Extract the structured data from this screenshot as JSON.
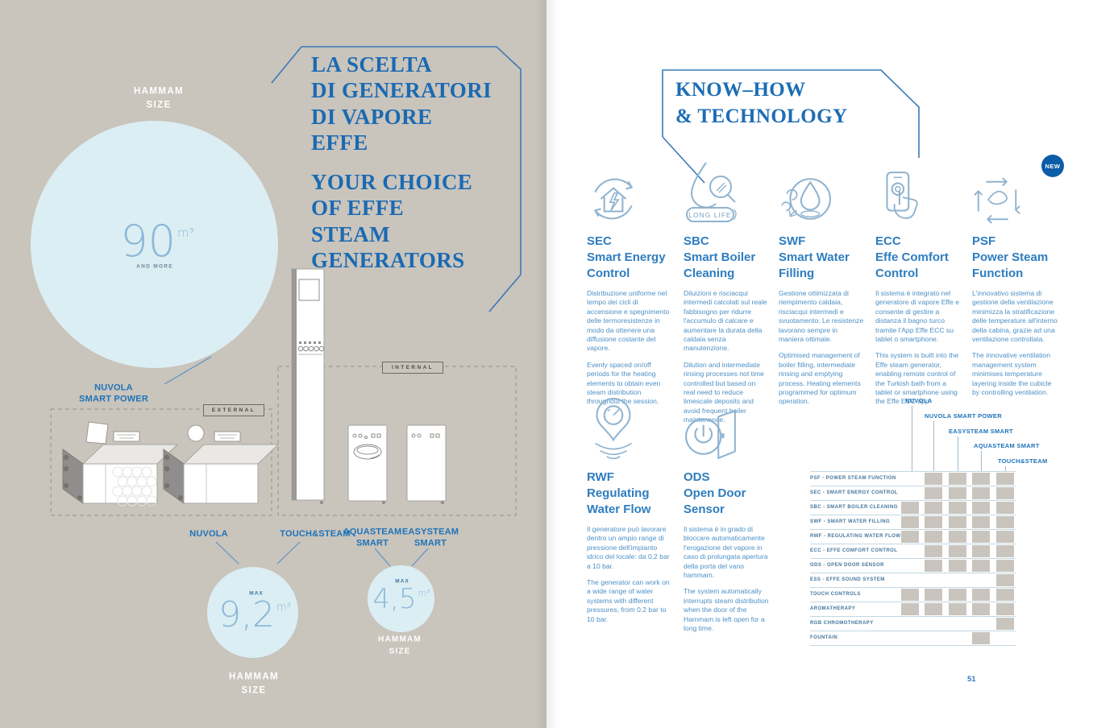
{
  "left_page": {
    "hammam_size_top": "HAMMAM\nSIZE",
    "title_it": "LA SCELTA\nDI GENERATORI\nDI VAPORE\nEFFE",
    "title_en": "YOUR CHOICE\nOF EFFE\nSTEAM\nGENERATORS",
    "big_circle": {
      "value": "90",
      "unit": "m³",
      "note": "AND MORE"
    },
    "labels": {
      "nuvola_smart_power": "NUVOLA\nSMART POWER",
      "external": "EXTERNAL",
      "internal": "INTERNAL",
      "nuvola": "NUVOLA",
      "touch_steam": "TOUCH&STEAM",
      "aquasteam": "AQUASTEAM\nSMART",
      "easysteam": "EASYSTEAM\nSMART"
    },
    "mid_circle": {
      "max": "MAX",
      "value": "9,2",
      "unit": "m³",
      "caption": "HAMMAM\nSIZE"
    },
    "small_circle": {
      "max": "MAX",
      "value": "4,5",
      "unit": "m³",
      "caption": "HAMMAM\nSIZE"
    }
  },
  "right_page": {
    "title": "KNOW–HOW\n& TECHNOLOGY",
    "long_life_label": "LONG LIFE",
    "new_badge": "NEW",
    "features": [
      {
        "code": "SEC",
        "name": "Smart Energy Control",
        "icon": "house-energy-icon",
        "it": "Distribuzione uniforme nel tempo dei cicli di accensione e spegnimento delle termoresistenze in modo da ottenere una diffusione costante del vapore.",
        "en": "Evenly spaced on/off periods for the heating elements to obtain even steam distribution throughout the session."
      },
      {
        "code": "SBC",
        "name": "Smart Boiler Cleaning",
        "icon": "droplet-magnifier-icon",
        "it": "Diluizioni e risciacqui intermedi calcolati sul reale fabbisogno per ridurre l'accumulo di calcare e aumentare la durata della caldaia senza manutenzione.",
        "en": "Dilution and intermediate rinsing processes not time controlled but based on real need to reduce limescale deposits and avoid frequent boiler maintenance."
      },
      {
        "code": "SWF",
        "name": "Smart Water Filling",
        "icon": "water-swirl-icon",
        "it": "Gestione ottimizzata di riempimento caldaia, risciacqui intermedi e svuotamento. Le resistenze lavorano sempre in maniera ottimale.",
        "en": "Optimised management of boiler filling, intermediate rinsing and emptying process. Heating elements programmed for optimum operation."
      },
      {
        "code": "ECC",
        "name": "Effe Comfort Control",
        "icon": "smartphone-touch-icon",
        "it": "Il sistema è integrato nel generatore di vapore Effe e consente di gestire a distanza il bagno turco tramite l'App Effe ECC su tablet o smartphone.",
        "en": "This system is built into the Effe steam generator, enabling remote control of the Turkish bath from a tablet or smartphone using the Effe ECC app."
      },
      {
        "code": "PSF",
        "name": "Power Steam Function",
        "icon": "ventilation-cycle-icon",
        "badge": "NEW",
        "it": "L'innovativo sistema di gestione della ventilazione minimizza la stratificazione delle temperature all'interno della cabina, grazie ad una ventilazione controllata.",
        "en": "The innovative ventilation management system minimises temperature layering inside the cubicle by controlling ventilation."
      },
      {
        "code": "RWF",
        "name": "Regulating Water Flow",
        "icon": "pressure-gauge-pin-icon",
        "it": "Il generatore può lavorare dentro un ampio range di pressione dell'impianto idrico del locale: da 0,2 bar a 10 bar.",
        "en": "The generator can work on a wide range of water systems with different pressures, from 0.2 bar to 10 bar."
      },
      {
        "code": "ODS",
        "name": "Open Door Sensor",
        "icon": "open-door-power-icon",
        "it": "Il sistema è in grado di bloccare automaticamente l'erogazione del vapore in caso di prolungata apertura della porta del vano hammam.",
        "en": "The system automatically interrupts steam distribution when the door of the Hammam is left open for a long time."
      }
    ],
    "matrix": {
      "columns": [
        "NUVOLA",
        "NUVOLA SMART POWER",
        "EASYSTEAM SMART",
        "AQUASTEAM SMART",
        "TOUCH&STEAM"
      ],
      "rows": [
        {
          "label": "PSF - POWER STEAM FUNCTION",
          "cells": [
            0,
            1,
            1,
            1,
            1
          ]
        },
        {
          "label": "SEC - SMART ENERGY CONTROL",
          "cells": [
            0,
            1,
            1,
            1,
            1
          ]
        },
        {
          "label": "SBC - SMART BOILER CLEANING",
          "cells": [
            1,
            1,
            1,
            1,
            1
          ]
        },
        {
          "label": "SWF - SMART WATER FILLING",
          "cells": [
            1,
            1,
            1,
            1,
            1
          ]
        },
        {
          "label": "RWF - REGULATING WATER FLOW",
          "cells": [
            1,
            1,
            1,
            1,
            1
          ]
        },
        {
          "label": "ECC - EFFE COMFORT CONTROL",
          "cells": [
            0,
            1,
            1,
            1,
            1
          ]
        },
        {
          "label": "ODS - OPEN DOOR SENSOR",
          "cells": [
            0,
            1,
            1,
            1,
            1
          ]
        },
        {
          "label": "ESS - EFFE SOUND SYSTEM",
          "cells": [
            0,
            0,
            0,
            0,
            1
          ]
        },
        {
          "label": "TOUCH CONTROLS",
          "cells": [
            1,
            1,
            1,
            1,
            1
          ]
        },
        {
          "label": "AROMATHERAPY",
          "cells": [
            1,
            1,
            1,
            1,
            1
          ]
        },
        {
          "label": "RGB CHROMOTHERAPY",
          "cells": [
            0,
            0,
            0,
            0,
            1
          ]
        },
        {
          "label": "FOUNTAIN",
          "cells": [
            0,
            0,
            0,
            1,
            0
          ]
        }
      ]
    },
    "page_number": "51"
  },
  "colors": {
    "accent_blue": "#1e73b9",
    "title_blue": "#1a6ab3",
    "light_circle_blue": "#dbeef3",
    "left_background": "#c9c4bc",
    "matrix_cell_gray": "#c9c4be",
    "new_badge_blue": "#0d5ca8"
  }
}
